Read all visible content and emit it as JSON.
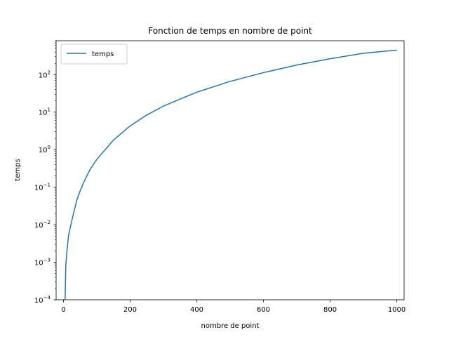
{
  "chart_data": {
    "type": "line",
    "title": "Fonction de temps en nombre de point",
    "xlabel": "nombre de point",
    "ylabel": "temps",
    "xlim": [
      -22,
      1022
    ],
    "ylim": [
      0.0001,
      800
    ],
    "yscale": "log",
    "xticks": [
      0,
      200,
      400,
      600,
      800,
      1000
    ],
    "yticks": [
      0.0001,
      0.001,
      0.01,
      0.1,
      1,
      10,
      100
    ],
    "ytick_labels": [
      {
        "base": "10",
        "exp": "−4"
      },
      {
        "base": "10",
        "exp": "−3"
      },
      {
        "base": "10",
        "exp": "−2"
      },
      {
        "base": "10",
        "exp": "−1"
      },
      {
        "base": "10",
        "exp": "0"
      },
      {
        "base": "10",
        "exp": "1"
      },
      {
        "base": "10",
        "exp": "2"
      }
    ],
    "grid": false,
    "legend": "top-left",
    "series": [
      {
        "name": "temps",
        "color": "#1f77b4",
        "x": [
          5,
          7,
          10,
          15,
          20,
          30,
          40,
          50,
          60,
          80,
          100,
          150,
          200,
          250,
          300,
          400,
          500,
          600,
          700,
          800,
          900,
          1000
        ],
        "y": [
          0.0001,
          0.0008,
          0.0018,
          0.005,
          0.008,
          0.02,
          0.045,
          0.08,
          0.13,
          0.3,
          0.55,
          1.8,
          4.3,
          8.4,
          14.5,
          34,
          66,
          113,
          180,
          265,
          370,
          450
        ]
      }
    ]
  }
}
